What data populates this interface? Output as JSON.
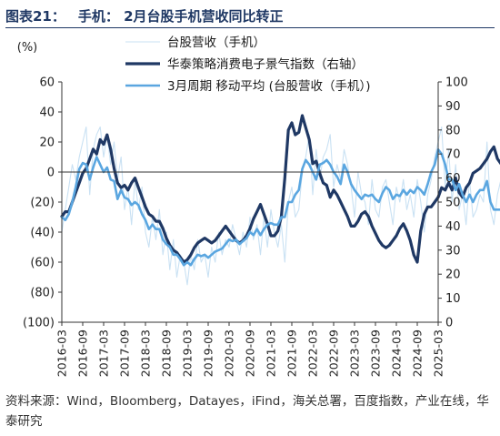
{
  "figure": {
    "number": "图表21：",
    "title": "手机： 2月台股手机营收同比转正"
  },
  "source": "资料来源：Wind，Bloomberg，Datayes，iFind，海关总署，百度指数，产业在线，华泰研究",
  "colors": {
    "series_raw": "#c9e1f3",
    "series_index": "#1f3864",
    "series_ma": "#5aa6e0",
    "axis": "#333333",
    "title": "#1f3864"
  },
  "chart_data": {
    "type": "line",
    "left_axis": {
      "unit_label": "(%)",
      "min": -100,
      "max": 60,
      "ticks": [
        60,
        40,
        20,
        0,
        -20,
        -40,
        -60,
        -80,
        -100
      ],
      "tick_labels": [
        "60",
        "40",
        "20",
        "0",
        "(20)",
        "(40)",
        "(60)",
        "(80)",
        "(100)"
      ]
    },
    "right_axis": {
      "min": 0,
      "max": 100,
      "ticks": [
        100,
        90,
        80,
        70,
        60,
        50,
        40,
        30,
        20,
        10,
        0
      ],
      "tick_labels": [
        "100",
        "90",
        "80",
        "70",
        "60",
        "50",
        "40",
        "30",
        "20",
        "10",
        "0"
      ]
    },
    "x_range": [
      "2016-03",
      "2025-03"
    ],
    "x_tick_labels": [
      "2016-03",
      "2016-09",
      "2017-03",
      "2017-09",
      "2018-03",
      "2018-09",
      "2019-03",
      "2019-09",
      "2020-03",
      "2020-09",
      "2021-03",
      "2021-09",
      "2022-03",
      "2022-09",
      "2023-03",
      "2023-09",
      "2024-03",
      "2024-09",
      "2025-03"
    ],
    "grid": false,
    "legend_position": "top",
    "series": [
      {
        "name": "台股营收（手机）",
        "axis": "left",
        "step_months": 1,
        "values": [
          -40,
          -25,
          -10,
          5,
          -5,
          10,
          20,
          30,
          -15,
          15,
          25,
          30,
          10,
          25,
          5,
          20,
          -5,
          10,
          -25,
          -10,
          -35,
          -5,
          -25,
          -10,
          -40,
          -50,
          -30,
          -45,
          -25,
          -55,
          -40,
          -65,
          -45,
          -70,
          -55,
          -60,
          -75,
          -55,
          -65,
          -45,
          -60,
          -55,
          -70,
          -50,
          -60,
          -40,
          -55,
          -45,
          -50,
          -35,
          -45,
          -55,
          -40,
          -50,
          -30,
          -45,
          -35,
          -55,
          -30,
          -50,
          -25,
          -40,
          -50,
          -35,
          -60,
          -20,
          -10,
          -30,
          -25,
          0,
          10,
          25,
          -15,
          15,
          -5,
          10,
          15,
          25,
          -10,
          5,
          -5,
          15,
          5,
          -10,
          -30,
          0,
          -15,
          -20,
          -35,
          -5,
          -25,
          -30,
          -10,
          -5,
          -20,
          -35,
          -10,
          -20,
          -5,
          -25,
          -15,
          -30,
          -5,
          -20,
          -40,
          -15,
          -5,
          10,
          20,
          30,
          -10,
          15,
          -20,
          5,
          -25,
          -15,
          -35,
          -5,
          -30,
          -25,
          -15,
          -20,
          20,
          -25,
          -35,
          -15,
          -5,
          -25,
          -40,
          -10,
          10,
          -30,
          -5,
          10,
          20,
          -20,
          15,
          25,
          -10,
          20,
          5,
          -5,
          20,
          -25,
          -10,
          10,
          -20,
          -35,
          -15,
          0
        ]
      },
      {
        "name": "华泰策略消费电子景气指数（右轴）",
        "axis": "right",
        "step_months": 1,
        "values": [
          44,
          46,
          46,
          50,
          54,
          58,
          62,
          64,
          68,
          72,
          70,
          76,
          74,
          78,
          72,
          64,
          58,
          56,
          57,
          55,
          58,
          60,
          56,
          52,
          48,
          45,
          44,
          42,
          42,
          39,
          35,
          32,
          30,
          29,
          27,
          25,
          26,
          28,
          31,
          33,
          34,
          35,
          34,
          33,
          34,
          36,
          38,
          40,
          38,
          36,
          34,
          33,
          34,
          36,
          39,
          43,
          46,
          49,
          45,
          41,
          36,
          36,
          38,
          44,
          60,
          80,
          83,
          78,
          79,
          86,
          81,
          76,
          66,
          67,
          62,
          58,
          57,
          52,
          55,
          53,
          50,
          47,
          44,
          40,
          40,
          42,
          45,
          46,
          44,
          40,
          37,
          34,
          32,
          31,
          32,
          34,
          36,
          39,
          41,
          38,
          34,
          28,
          25,
          38,
          45,
          48,
          48,
          50,
          52,
          56,
          55,
          58,
          55,
          60,
          54,
          52,
          56,
          58,
          62,
          63,
          64,
          66,
          68,
          71,
          73,
          68,
          66,
          72,
          76,
          74,
          79,
          77,
          80,
          80,
          80
        ]
      },
      {
        "name": "3月周期 移动平均 (台股营收（手机）)",
        "axis": "left",
        "step_months": 1,
        "values": [
          -30,
          -32,
          -28,
          -20,
          -10,
          2,
          6,
          5,
          -5,
          3,
          10,
          5,
          0,
          3,
          -5,
          -6,
          -18,
          -12,
          -17,
          -18,
          -22,
          -20,
          -22,
          -28,
          -32,
          -38,
          -35,
          -38,
          -38,
          -45,
          -48,
          -50,
          -55,
          -55,
          -58,
          -62,
          -60,
          -62,
          -58,
          -55,
          -56,
          -55,
          -57,
          -55,
          -53,
          -52,
          -51,
          -48,
          -45,
          -46,
          -45,
          -48,
          -46,
          -44,
          -40,
          -42,
          -38,
          -42,
          -38,
          -35,
          -34,
          -35,
          -35,
          -30,
          -30,
          -20,
          -20,
          -15,
          -12,
          2,
          8,
          5,
          0,
          -5,
          5,
          6,
          8,
          5,
          0,
          -3,
          -8,
          5,
          0,
          -8,
          -12,
          -15,
          -18,
          -15,
          -16,
          -15,
          -18,
          -20,
          -14,
          -10,
          -12,
          -18,
          -15,
          -16,
          -12,
          -15,
          -12,
          -14,
          -10,
          -12,
          -15,
          -8,
          0,
          5,
          15,
          12,
          5,
          -5,
          -5,
          -12,
          -8,
          -15,
          -20,
          -15,
          -20,
          -15,
          -12,
          -12,
          -6,
          -20,
          -25,
          -25,
          -25,
          -18,
          -25,
          -25,
          -12,
          -12,
          -8,
          -2,
          0,
          -12,
          -8,
          -5,
          -10,
          -2,
          -8,
          -18,
          -10,
          -12,
          -10,
          -18,
          -15,
          -5,
          0
        ]
      }
    ]
  }
}
